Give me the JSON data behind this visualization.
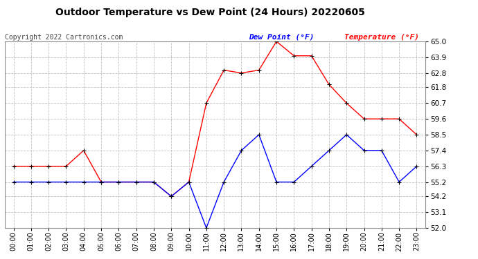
{
  "title": "Outdoor Temperature vs Dew Point (24 Hours) 20220605",
  "copyright_text": "Copyright 2022 Cartronics.com",
  "legend_dew": "Dew Point (°F)",
  "legend_temp": "Temperature (°F)",
  "hours": [
    "00:00",
    "01:00",
    "02:00",
    "03:00",
    "04:00",
    "05:00",
    "06:00",
    "07:00",
    "08:00",
    "09:00",
    "10:00",
    "11:00",
    "12:00",
    "13:00",
    "14:00",
    "15:00",
    "16:00",
    "17:00",
    "18:00",
    "19:00",
    "20:00",
    "21:00",
    "22:00",
    "23:00"
  ],
  "temperature": [
    56.3,
    56.3,
    56.3,
    56.3,
    57.4,
    55.2,
    55.2,
    55.2,
    55.2,
    54.2,
    55.2,
    60.7,
    63.0,
    62.8,
    63.0,
    65.0,
    64.0,
    64.0,
    62.0,
    60.7,
    59.6,
    59.6,
    59.6,
    58.5
  ],
  "dew_point": [
    55.2,
    55.2,
    55.2,
    55.2,
    55.2,
    55.2,
    55.2,
    55.2,
    55.2,
    54.2,
    55.2,
    52.0,
    55.2,
    57.4,
    58.5,
    55.2,
    55.2,
    56.3,
    57.4,
    58.5,
    57.4,
    57.4,
    55.2,
    56.3
  ],
  "temp_color": "#ff0000",
  "dew_color": "#0000ff",
  "marker_color": "#000000",
  "background_color": "#ffffff",
  "grid_color": "#c0c0c0",
  "ylim_min": 52.0,
  "ylim_max": 65.0,
  "yticks": [
    52.0,
    53.1,
    54.2,
    55.2,
    56.3,
    57.4,
    58.5,
    59.6,
    60.7,
    61.8,
    62.8,
    63.9,
    65.0
  ],
  "title_fontsize": 10,
  "copyright_fontsize": 7,
  "legend_fontsize": 8,
  "tick_fontsize": 7.5
}
